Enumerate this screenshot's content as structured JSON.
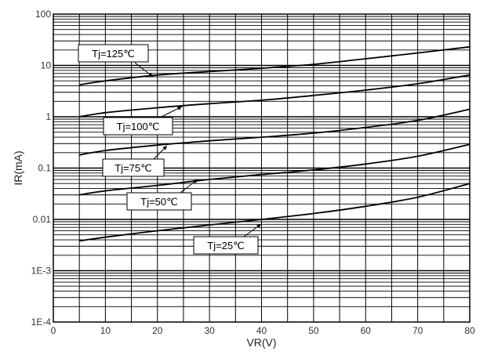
{
  "chart_data": {
    "type": "line",
    "xlabel": "VR(V)",
    "ylabel": "IR(mA)",
    "xlim": [
      0,
      80
    ],
    "ylim": [
      0.0001,
      100
    ],
    "yscale": "log",
    "grid": true,
    "x_ticks": [
      "0",
      "10",
      "20",
      "30",
      "40",
      "50",
      "60",
      "70",
      "80"
    ],
    "y_ticks": [
      "1E-4",
      "1E-3",
      "0.01",
      "0.1",
      "1",
      "10",
      "100"
    ],
    "series": [
      {
        "name": "Tj=125℃",
        "x": [
          5,
          10,
          20,
          30,
          40,
          50,
          60,
          70,
          80
        ],
        "y": [
          4.2,
          5.0,
          6.5,
          7.6,
          8.8,
          10.5,
          13.5,
          17.5,
          23
        ]
      },
      {
        "name": "Tj=100℃",
        "x": [
          5,
          10,
          20,
          30,
          40,
          50,
          60,
          70,
          80
        ],
        "y": [
          1.0,
          1.2,
          1.5,
          1.8,
          2.1,
          2.6,
          3.3,
          4.4,
          6.5
        ]
      },
      {
        "name": "Tj=75℃",
        "x": [
          5,
          10,
          20,
          30,
          40,
          50,
          60,
          70,
          80
        ],
        "y": [
          0.18,
          0.22,
          0.28,
          0.34,
          0.4,
          0.48,
          0.62,
          0.85,
          1.4
        ]
      },
      {
        "name": "Tj=50℃",
        "x": [
          5,
          10,
          20,
          30,
          40,
          50,
          60,
          70,
          80
        ],
        "y": [
          0.03,
          0.036,
          0.046,
          0.06,
          0.075,
          0.092,
          0.12,
          0.17,
          0.29
        ]
      },
      {
        "name": "Tj=25℃",
        "x": [
          5,
          10,
          20,
          30,
          40,
          50,
          60,
          70,
          80
        ],
        "y": [
          0.0038,
          0.0045,
          0.006,
          0.0078,
          0.01,
          0.013,
          0.018,
          0.027,
          0.05
        ]
      }
    ]
  }
}
